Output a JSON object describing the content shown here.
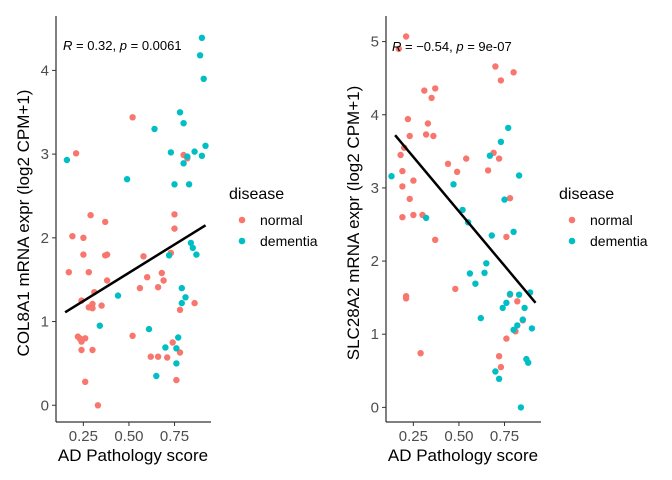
{
  "colors": {
    "normal": "#F8766D",
    "dementia": "#00BFC4",
    "fit_line": "#000000",
    "axis": "#000000"
  },
  "chart_data": [
    {
      "type": "scatter",
      "title": "",
      "xlabel": "AD Pathology score",
      "ylabel": "COL8A1 mRNA expr (log2 CPM+1)",
      "xlim": [
        0.1,
        0.95
      ],
      "ylim": [
        -0.2,
        4.65
      ],
      "xticks": [
        0.25,
        0.5,
        0.75
      ],
      "xtick_labels": [
        "0.25",
        "0.50",
        "0.75"
      ],
      "yticks": [
        0,
        1,
        2,
        3,
        4
      ],
      "ytick_labels": [
        "0",
        "1",
        "2",
        "3",
        "4"
      ],
      "grid": false,
      "annotation": {
        "R": "0.32",
        "p": "0.0061"
      },
      "regression": {
        "x": [
          0.15,
          0.92
        ],
        "y": [
          1.11,
          2.15
        ]
      },
      "series": [
        {
          "name": "normal",
          "points": [
            [
              0.21,
              3.01
            ],
            [
              0.19,
              2.02
            ],
            [
              0.25,
              2.0
            ],
            [
              0.25,
              1.8
            ],
            [
              0.17,
              1.59
            ],
            [
              0.28,
              1.59
            ],
            [
              0.31,
              1.35
            ],
            [
              0.24,
              1.25
            ],
            [
              0.3,
              1.21
            ],
            [
              0.28,
              1.17
            ],
            [
              0.3,
              1.16
            ],
            [
              0.37,
              1.79
            ],
            [
              0.38,
              1.49
            ],
            [
              0.35,
              1.19
            ],
            [
              0.38,
              1.8
            ],
            [
              0.29,
              2.27
            ],
            [
              0.37,
              2.19
            ],
            [
              0.22,
              0.82
            ],
            [
              0.23,
              0.8
            ],
            [
              0.24,
              0.76
            ],
            [
              0.24,
              0.66
            ],
            [
              0.26,
              0.8
            ],
            [
              0.3,
              0.66
            ],
            [
              0.26,
              0.28
            ],
            [
              0.33,
              0.0
            ],
            [
              0.52,
              3.44
            ],
            [
              0.52,
              0.83
            ],
            [
              0.56,
              1.4
            ],
            [
              0.58,
              1.78
            ],
            [
              0.6,
              1.53
            ],
            [
              0.62,
              0.58
            ],
            [
              0.66,
              0.58
            ],
            [
              0.66,
              1.41
            ],
            [
              0.68,
              1.58
            ],
            [
              0.69,
              1.49
            ],
            [
              0.71,
              0.57
            ],
            [
              0.73,
              1.82
            ],
            [
              0.75,
              2.11
            ],
            [
              0.75,
              2.28
            ],
            [
              0.76,
              0.3
            ],
            [
              0.78,
              0.63
            ],
            [
              0.78,
              1.14
            ],
            [
              0.8,
              2.99
            ],
            [
              0.82,
              2.95
            ],
            [
              0.86,
              1.22
            ],
            [
              0.74,
              0.75
            ]
          ]
        },
        {
          "name": "dementia",
          "points": [
            [
              0.16,
              2.93
            ],
            [
              0.34,
              0.95
            ],
            [
              0.44,
              1.31
            ],
            [
              0.49,
              2.7
            ],
            [
              0.61,
              0.91
            ],
            [
              0.64,
              3.3
            ],
            [
              0.65,
              0.35
            ],
            [
              0.7,
              0.69
            ],
            [
              0.72,
              1.79
            ],
            [
              0.73,
              3.02
            ],
            [
              0.75,
              2.64
            ],
            [
              0.76,
              0.5
            ],
            [
              0.77,
              0.81
            ],
            [
              0.78,
              3.5
            ],
            [
              0.79,
              1.4
            ],
            [
              0.79,
              1.22
            ],
            [
              0.8,
              3.37
            ],
            [
              0.8,
              2.89
            ],
            [
              0.81,
              1.29
            ],
            [
              0.82,
              2.97
            ],
            [
              0.83,
              2.64
            ],
            [
              0.84,
              1.94
            ],
            [
              0.85,
              1.88
            ],
            [
              0.87,
              1.8
            ],
            [
              0.89,
              4.18
            ],
            [
              0.9,
              4.39
            ],
            [
              0.9,
              2.98
            ],
            [
              0.91,
              3.9
            ],
            [
              0.92,
              3.1
            ],
            [
              0.86,
              3.03
            ],
            [
              0.76,
              0.68
            ]
          ]
        }
      ]
    },
    {
      "type": "scatter",
      "title": "",
      "xlabel": "AD Pathology score",
      "ylabel": "SLC28A2 mRNA expr (log2 CPM+1)",
      "xlim": [
        0.1,
        0.95
      ],
      "ylim": [
        -0.2,
        5.35
      ],
      "xticks": [
        0.25,
        0.5,
        0.75
      ],
      "xtick_labels": [
        "0.25",
        "0.50",
        "0.75"
      ],
      "yticks": [
        0,
        1,
        2,
        3,
        4,
        5
      ],
      "ytick_labels": [
        "0",
        "1",
        "2",
        "3",
        "4",
        "5"
      ],
      "grid": false,
      "annotation": {
        "R": "−0.54",
        "p": "9e-07"
      },
      "regression": {
        "x": [
          0.15,
          0.92
        ],
        "y": [
          3.72,
          1.43
        ]
      },
      "series": [
        {
          "name": "normal",
          "points": [
            [
              0.17,
              4.9
            ],
            [
              0.21,
              5.07
            ],
            [
              0.2,
              3.55
            ],
            [
              0.18,
              3.45
            ],
            [
              0.19,
              3.23
            ],
            [
              0.19,
              3.02
            ],
            [
              0.22,
              3.94
            ],
            [
              0.23,
              3.71
            ],
            [
              0.25,
              3.1
            ],
            [
              0.23,
              2.85
            ],
            [
              0.19,
              2.6
            ],
            [
              0.25,
              2.63
            ],
            [
              0.21,
              1.52
            ],
            [
              0.21,
              1.49
            ],
            [
              0.31,
              4.33
            ],
            [
              0.33,
              3.88
            ],
            [
              0.32,
              3.73
            ],
            [
              0.35,
              4.23
            ],
            [
              0.37,
              4.36
            ],
            [
              0.36,
              3.71
            ],
            [
              0.3,
              2.63
            ],
            [
              0.37,
              2.29
            ],
            [
              0.29,
              0.74
            ],
            [
              0.44,
              3.33
            ],
            [
              0.49,
              3.22
            ],
            [
              0.54,
              3.4
            ],
            [
              0.48,
              1.62
            ],
            [
              0.66,
              3.24
            ],
            [
              0.7,
              4.66
            ],
            [
              0.73,
              4.47
            ],
            [
              0.69,
              3.48
            ],
            [
              0.72,
              3.4
            ],
            [
              0.8,
              4.58
            ],
            [
              0.78,
              2.86
            ],
            [
              0.76,
              2.33
            ],
            [
              0.76,
              0.94
            ],
            [
              0.72,
              0.7
            ],
            [
              0.73,
              0.55
            ],
            [
              0.78,
              1.54
            ],
            [
              0.82,
              1.45
            ],
            [
              0.85,
              1.19
            ],
            [
              0.81,
              1.04
            ]
          ]
        },
        {
          "name": "dementia",
          "points": [
            [
              0.13,
              3.16
            ],
            [
              0.32,
              2.59
            ],
            [
              0.47,
              3.05
            ],
            [
              0.52,
              2.7
            ],
            [
              0.55,
              2.53
            ],
            [
              0.59,
              1.69
            ],
            [
              0.62,
              1.22
            ],
            [
              0.64,
              1.84
            ],
            [
              0.65,
              1.97
            ],
            [
              0.67,
              3.44
            ],
            [
              0.68,
              2.35
            ],
            [
              0.7,
              0.49
            ],
            [
              0.72,
              0.39
            ],
            [
              0.73,
              3.63
            ],
            [
              0.74,
              1.36
            ],
            [
              0.75,
              2.84
            ],
            [
              0.76,
              1.43
            ],
            [
              0.77,
              3.82
            ],
            [
              0.78,
              1.55
            ],
            [
              0.8,
              2.4
            ],
            [
              0.8,
              1.06
            ],
            [
              0.82,
              1.12
            ],
            [
              0.83,
              3.17
            ],
            [
              0.83,
              1.54
            ],
            [
              0.84,
              0.0
            ],
            [
              0.86,
              1.36
            ],
            [
              0.87,
              0.66
            ],
            [
              0.88,
              0.61
            ],
            [
              0.89,
              1.57
            ],
            [
              0.9,
              1.08
            ],
            [
              0.85,
              1.2
            ],
            [
              0.56,
              1.83
            ]
          ]
        }
      ]
    }
  ],
  "legends": [
    {
      "title": "disease",
      "entries": [
        "normal",
        "dementia"
      ]
    },
    {
      "title": "disease",
      "entries": [
        "normal",
        "dementia"
      ]
    }
  ]
}
